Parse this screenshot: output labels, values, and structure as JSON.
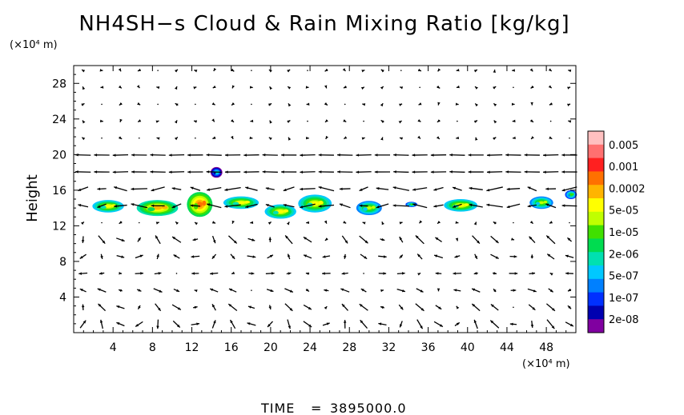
{
  "chart_data": {
    "type": "heatmap",
    "title": "NH4SH−s Cloud & Rain Mixing Ratio [kg/kg]",
    "ylabel": "Height",
    "y_unit": "(×10⁴ m)",
    "x_unit": "(×10⁴ m)",
    "xlim": [
      0,
      51
    ],
    "ylim": [
      0,
      30
    ],
    "x_ticks": [
      4,
      8,
      12,
      16,
      20,
      24,
      28,
      32,
      36,
      40,
      44,
      48
    ],
    "x_tick_labels": [
      "4",
      "8",
      "12",
      "16",
      "20",
      "24",
      "28",
      "32",
      "36",
      "40",
      "44",
      "48"
    ],
    "y_ticks": [
      4,
      8,
      12,
      16,
      20,
      24,
      28
    ],
    "y_tick_labels": [
      "4",
      "8",
      "12",
      "16",
      "20",
      "24",
      "28"
    ],
    "colorbar": {
      "labels": [
        "0.005",
        "0.001",
        "0.0002",
        "5e-05",
        "1e-05",
        "2e-06",
        "5e-07",
        "1e-07",
        "2e-08"
      ],
      "colors": [
        "#ffc0c0",
        "#ff7070",
        "#ff2020",
        "#ff7000",
        "#ffb400",
        "#ffff00",
        "#c0ff00",
        "#40e000",
        "#00dc50",
        "#00e0b0",
        "#00c8ff",
        "#0080ff",
        "#0030ff",
        "#0000b0",
        "#8000a0"
      ]
    },
    "cloud_blobs": [
      {
        "x": 3.5,
        "y": 14.2,
        "w": 3.2,
        "h": 1.4,
        "level": 7
      },
      {
        "x": 8.5,
        "y": 14.0,
        "w": 4.2,
        "h": 1.8,
        "level": 6
      },
      {
        "x": 12.8,
        "y": 14.4,
        "w": 2.6,
        "h": 2.8,
        "level": 5
      },
      {
        "x": 14.5,
        "y": 18.0,
        "w": 1.2,
        "h": 1.2,
        "level": 11
      },
      {
        "x": 17.0,
        "y": 14.6,
        "w": 3.6,
        "h": 1.4,
        "level": 7
      },
      {
        "x": 21.0,
        "y": 13.6,
        "w": 3.2,
        "h": 1.6,
        "level": 7
      },
      {
        "x": 24.5,
        "y": 14.5,
        "w": 3.4,
        "h": 2.0,
        "level": 7
      },
      {
        "x": 30.0,
        "y": 14.0,
        "w": 2.6,
        "h": 1.6,
        "level": 8
      },
      {
        "x": 34.3,
        "y": 14.4,
        "w": 1.2,
        "h": 0.6,
        "level": 9
      },
      {
        "x": 39.3,
        "y": 14.3,
        "w": 3.4,
        "h": 1.4,
        "level": 7
      },
      {
        "x": 47.5,
        "y": 14.6,
        "w": 2.4,
        "h": 1.4,
        "level": 8
      },
      {
        "x": 50.5,
        "y": 15.5,
        "w": 1.2,
        "h": 1.0,
        "level": 9
      }
    ],
    "wind_vectors": {
      "grid_x_spacing": 1.9,
      "grid_y_spacing": 1.9,
      "note": "dense field of flow arrows over the whole domain"
    }
  },
  "footer": {
    "time_label": "TIME",
    "time_eq": "=",
    "time_value": "3895000.0"
  }
}
